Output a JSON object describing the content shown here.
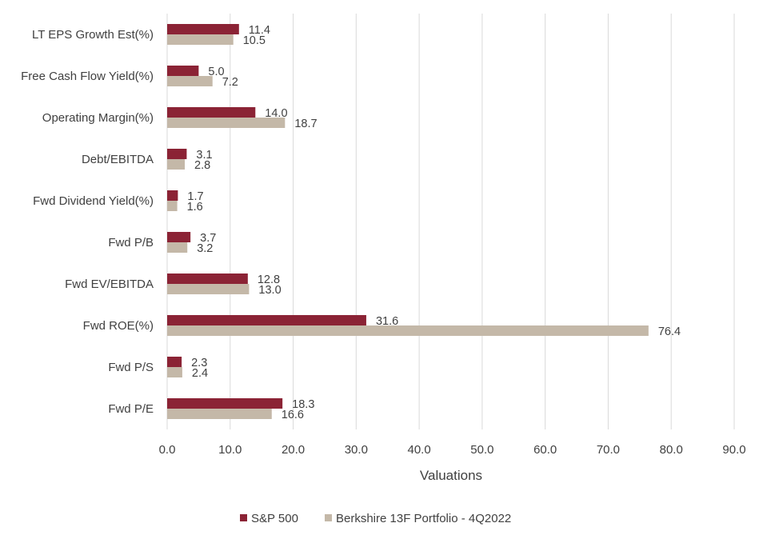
{
  "chart_data": {
    "type": "bar",
    "orientation": "horizontal",
    "title": "",
    "xlabel": "Valuations",
    "ylabel": "",
    "xlim": [
      0,
      90
    ],
    "x_ticks": [
      "0.0",
      "10.0",
      "20.0",
      "30.0",
      "40.0",
      "50.0",
      "60.0",
      "70.0",
      "80.0",
      "90.0"
    ],
    "grid": "vertical",
    "legend_position": "bottom",
    "categories": [
      "LT EPS Growth Est(%)",
      "Free Cash Flow Yield(%)",
      "Operating Margin(%)",
      "Debt/EBITDA",
      "Fwd Dividend Yield(%)",
      "Fwd P/B",
      "Fwd EV/EBITDA",
      "Fwd ROE(%)",
      "Fwd P/S",
      "Fwd P/E"
    ],
    "series": [
      {
        "name": "S&P 500",
        "color": "#8B2335",
        "values": [
          11.4,
          5.0,
          14.0,
          3.1,
          1.7,
          3.7,
          12.8,
          31.6,
          2.3,
          18.3
        ],
        "labels": [
          "11.4",
          "5.0",
          "14.0",
          "3.1",
          "1.7",
          "3.7",
          "12.8",
          "31.6",
          "2.3",
          "18.3"
        ]
      },
      {
        "name": "Berkshire 13F Portfolio - 4Q2022",
        "color": "#C4B8A8",
        "values": [
          10.5,
          7.2,
          18.7,
          2.8,
          1.6,
          3.2,
          13.0,
          76.4,
          2.4,
          16.6
        ],
        "labels": [
          "10.5",
          "7.2",
          "18.7",
          "2.8",
          "1.6",
          "3.2",
          "13.0",
          "76.4",
          "2.4",
          "16.6"
        ]
      }
    ]
  }
}
